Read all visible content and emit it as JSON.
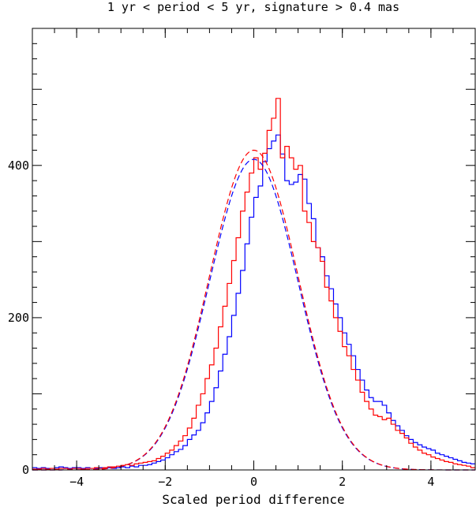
{
  "chart_data": {
    "type": "histogram",
    "title": "1 yr < period < 5 yr, signature > 0.4 mas",
    "xlabel": "Scaled period difference",
    "ylabel": "",
    "xlim": [
      -5,
      5
    ],
    "ylim": [
      0,
      580
    ],
    "xticks": [
      -4,
      -2,
      0,
      2,
      4
    ],
    "xtick_labels": [
      "−4",
      "−2",
      "0",
      "2",
      "4"
    ],
    "yticks": [
      0,
      200,
      400
    ],
    "ytick_labels": [
      "0",
      "200",
      "400"
    ],
    "grid": false,
    "legend": "none",
    "bin_width": 0.1,
    "bin_start": -5,
    "series": [
      {
        "color": "#0000ff",
        "style": "histogram",
        "values": [
          3,
          2,
          3,
          2,
          2,
          3,
          4,
          3,
          2,
          3,
          3,
          2,
          3,
          2,
          2,
          3,
          2,
          3,
          2,
          3,
          4,
          3,
          5,
          4,
          6,
          6,
          7,
          9,
          11,
          13,
          16,
          20,
          24,
          27,
          32,
          40,
          46,
          52,
          62,
          75,
          90,
          108,
          130,
          152,
          175,
          203,
          232,
          262,
          297,
          332,
          358,
          373,
          405,
          422,
          432,
          440,
          415,
          380,
          375,
          378,
          388,
          382,
          350,
          330,
          292,
          280,
          255,
          238,
          218,
          200,
          180,
          165,
          150,
          132,
          118,
          105,
          95,
          90,
          90,
          85,
          75,
          65,
          58,
          52,
          45,
          40,
          36,
          33,
          30,
          28,
          26,
          22,
          20,
          18,
          16,
          14,
          12,
          10,
          9,
          8
        ]
      },
      {
        "color": "#ff0000",
        "style": "histogram",
        "values": [
          1,
          1,
          2,
          1,
          2,
          1,
          2,
          2,
          1,
          2,
          2,
          1,
          2,
          2,
          3,
          2,
          3,
          4,
          4,
          5,
          6,
          7,
          6,
          8,
          9,
          10,
          11,
          12,
          15,
          18,
          22,
          26,
          32,
          38,
          45,
          55,
          68,
          85,
          100,
          120,
          138,
          160,
          188,
          215,
          245,
          275,
          305,
          340,
          365,
          390,
          410,
          395,
          416,
          446,
          462,
          488,
          410,
          425,
          410,
          395,
          400,
          340,
          325,
          300,
          292,
          274,
          240,
          222,
          200,
          182,
          162,
          150,
          132,
          118,
          102,
          90,
          80,
          72,
          70,
          66,
          68,
          60,
          52,
          48,
          42,
          35,
          30,
          26,
          22,
          20,
          17,
          15,
          13,
          11,
          10,
          8,
          7,
          6,
          5,
          3
        ]
      },
      {
        "color": "#0000ff",
        "style": "dashed",
        "name": "",
        "gaussian": {
          "mu": 0,
          "sigma": 1,
          "peak": 408
        }
      },
      {
        "color": "#ff0000",
        "style": "dashed",
        "name": "",
        "gaussian": {
          "mu": 0,
          "sigma": 1,
          "peak": 420
        }
      }
    ]
  }
}
